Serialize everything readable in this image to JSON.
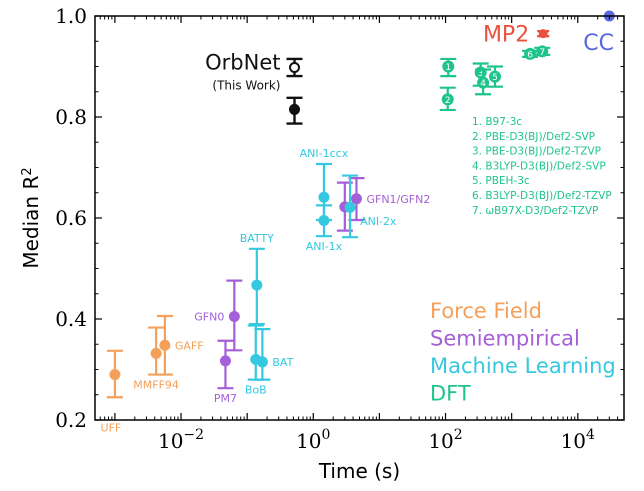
{
  "chart_data": {
    "type": "scatter",
    "xlabel": "Time (s)",
    "ylabel": "Median R",
    "ylabel_sup": "2",
    "xscale": "log",
    "xlim": [
      0.0005,
      50000
    ],
    "ylim": [
      0.2,
      1.0
    ],
    "x_ticks": [
      {
        "value": 0.01,
        "base": "10",
        "exp": "−2"
      },
      {
        "value": 1,
        "base": "10",
        "exp": "0"
      },
      {
        "value": 100,
        "base": "10",
        "exp": "2"
      },
      {
        "value": 10000,
        "base": "10",
        "exp": "4"
      }
    ],
    "y_ticks": [
      {
        "value": 0.2,
        "label": "0.2"
      },
      {
        "value": 0.4,
        "label": "0.4"
      },
      {
        "value": 0.6,
        "label": "0.6"
      },
      {
        "value": 0.8,
        "label": "0.8"
      },
      {
        "value": 1.0,
        "label": "1.0"
      }
    ],
    "categories": [
      {
        "name": "Force Field",
        "color": "#f5a05a"
      },
      {
        "name": "Semiempirical",
        "color": "#a55fd8"
      },
      {
        "name": "Machine Learning",
        "color": "#35c8e0"
      },
      {
        "name": "DFT",
        "color": "#1fc48c"
      }
    ],
    "points": [
      {
        "label": "UFF",
        "category": 0,
        "x": 0.001,
        "y": 0.29,
        "lo": 0.245,
        "hi": 0.337,
        "label_pos": "below-left"
      },
      {
        "label": "MMFF94",
        "category": 0,
        "x": 0.0042,
        "y": 0.332,
        "lo": 0.29,
        "hi": 0.383,
        "label_pos": "below"
      },
      {
        "label": "GAFF",
        "category": 0,
        "x": 0.0057,
        "y": 0.348,
        "lo": 0.29,
        "hi": 0.406,
        "label_pos": "right"
      },
      {
        "label": "PM7",
        "category": 1,
        "x": 0.047,
        "y": 0.317,
        "lo": 0.263,
        "hi": 0.357,
        "label_pos": "below"
      },
      {
        "label": "GFN0",
        "category": 1,
        "x": 0.064,
        "y": 0.405,
        "lo": 0.338,
        "hi": 0.476,
        "label_pos": "left"
      },
      {
        "label": "GFN1/GFN2",
        "category": 1,
        "x": 4.5,
        "y": 0.638,
        "lo": 0.596,
        "hi": 0.679,
        "label_pos": "right"
      },
      {
        "label": "",
        "category": 1,
        "x": 3.0,
        "y": 0.622,
        "lo": 0.575,
        "hi": 0.67,
        "label_pos": "none"
      },
      {
        "label": "BATTY",
        "category": 2,
        "x": 0.14,
        "y": 0.467,
        "lo": 0.39,
        "hi": 0.539,
        "label_pos": "above"
      },
      {
        "label": "BoB",
        "category": 2,
        "x": 0.135,
        "y": 0.32,
        "lo": 0.28,
        "hi": 0.387,
        "label_pos": "below"
      },
      {
        "label": "BAT",
        "category": 2,
        "x": 0.17,
        "y": 0.315,
        "lo": 0.28,
        "hi": 0.38,
        "label_pos": "right"
      },
      {
        "label": "ANI-1ccx",
        "category": 2,
        "x": 1.45,
        "y": 0.641,
        "lo": 0.596,
        "hi": 0.707,
        "label_pos": "above"
      },
      {
        "label": "ANI-1x",
        "category": 2,
        "x": 1.45,
        "y": 0.595,
        "lo": 0.564,
        "hi": 0.625,
        "label_pos": "below"
      },
      {
        "label": "ANI-2x",
        "category": 2,
        "x": 3.6,
        "y": 0.621,
        "lo": 0.562,
        "hi": 0.684,
        "label_pos": "below-right"
      },
      {
        "label": "1",
        "category": 3,
        "x": 110,
        "y": 0.9,
        "lo": 0.881,
        "hi": 0.915,
        "label_pos": "inside"
      },
      {
        "label": "2",
        "category": 3,
        "x": 108,
        "y": 0.835,
        "lo": 0.814,
        "hi": 0.858,
        "label_pos": "inside"
      },
      {
        "label": "3",
        "category": 3,
        "x": 340,
        "y": 0.888,
        "lo": 0.862,
        "hi": 0.906,
        "label_pos": "inside"
      },
      {
        "label": "4",
        "category": 3,
        "x": 370,
        "y": 0.868,
        "lo": 0.845,
        "hi": 0.894,
        "label_pos": "inside"
      },
      {
        "label": "5",
        "category": 3,
        "x": 560,
        "y": 0.88,
        "lo": 0.86,
        "hi": 0.9,
        "label_pos": "inside"
      },
      {
        "label": "6",
        "category": 3,
        "x": 1900,
        "y": 0.925,
        "lo": 0.919,
        "hi": 0.931,
        "label_pos": "inside"
      },
      {
        "label": "7",
        "category": 3,
        "x": 2900,
        "y": 0.93,
        "lo": 0.923,
        "hi": 0.937,
        "label_pos": "inside"
      }
    ],
    "orbnet": {
      "title": "OrbNet",
      "subtitle": "(This Work)",
      "color": "#111111",
      "points": [
        {
          "x": 0.52,
          "y": 0.898,
          "lo": 0.881,
          "hi": 0.915,
          "open": true
        },
        {
          "x": 0.52,
          "y": 0.815,
          "lo": 0.787,
          "hi": 0.838,
          "open": false
        }
      ]
    },
    "mp2": {
      "label": "MP2",
      "color": "#e8533f",
      "x": 3000,
      "y": 0.965,
      "lo": 0.96,
      "hi": 0.97
    },
    "cc": {
      "label": "CC",
      "color": "#5a68e0",
      "x": 30000,
      "y": 1.0
    },
    "dft_legend": [
      "1. B97-3c",
      "2. PBE-D3(BJ)/Def2-SVP",
      "3. PBE-D3(BJ)/Def2-TZVP",
      "4. B3LYP-D3(BJ)/Def2-SVP",
      "5. PBEH-3c",
      "6. B3LYP-D3(BJ)/Def2-TZVP",
      "7. ωB97X-D3/Def2-TZVP"
    ],
    "grid": false,
    "legend_position": "bottom-right"
  }
}
